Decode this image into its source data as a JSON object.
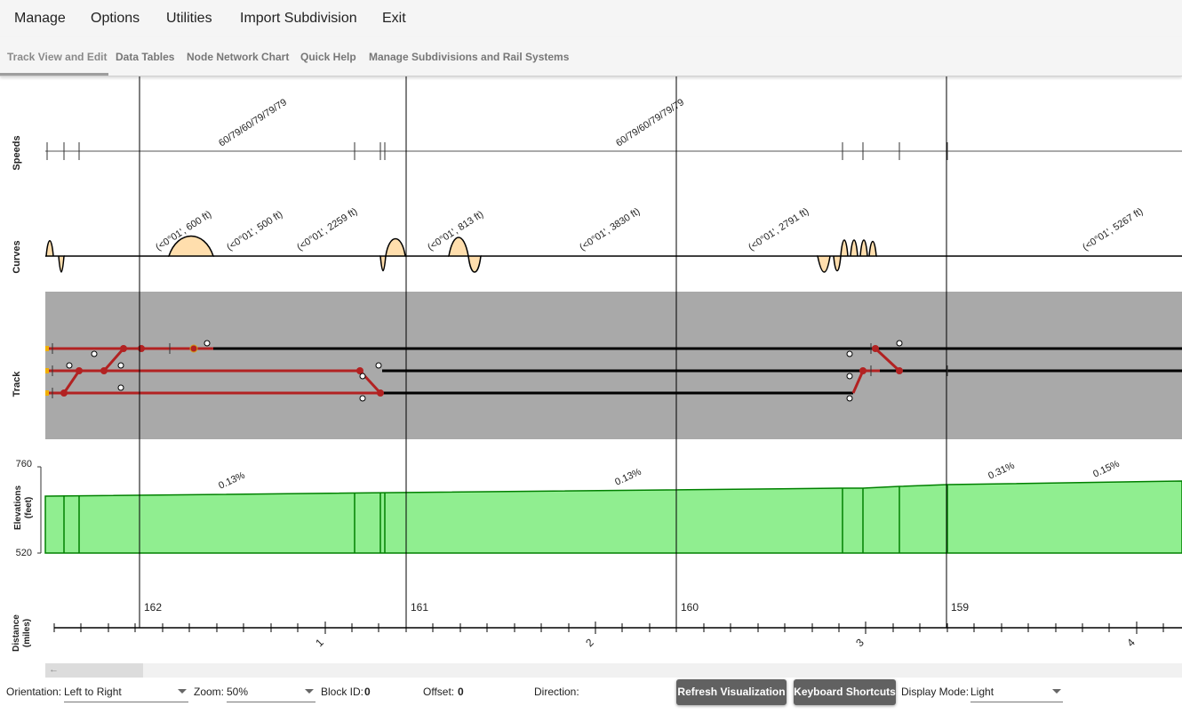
{
  "menu": {
    "items": [
      "Manage",
      "Options",
      "Utilities",
      "Import Subdivision",
      "Exit"
    ]
  },
  "tabs": {
    "items": [
      "Track View and Edit",
      "Data Tables",
      "Node Network Chart",
      "Quick Help",
      "Manage Subdivisions and Rail Systems"
    ],
    "active": "Track View and Edit"
  },
  "viz": {
    "row_labels": {
      "speeds": "Speeds",
      "curves": "Curves",
      "track": "Track",
      "elev1": "Elevations",
      "elev2": "(feet)",
      "dist1": "Distance",
      "dist2": "(miles)"
    },
    "speed_labels": [
      "60/79/60/79/79/79",
      "60/79/60/79/79/79"
    ],
    "curve_labels": [
      "(<0°01', 600 ft)",
      "(<0°01', 500 ft)",
      "(<0°01', 2259 ft)",
      "(<0°01', 813 ft)",
      "(<0°01', 3830 ft)",
      "(<0°01', 2791 ft)",
      "(<0°01', 5267 ft)"
    ],
    "elevation_axis": {
      "max": "760",
      "min": "520"
    },
    "grade_labels": [
      "0.13%",
      "0.13%",
      "0.31%",
      "0.15%"
    ],
    "mileposts": [
      "162",
      "161",
      "160",
      "159"
    ],
    "distance_ticks": [
      "1",
      "2",
      "3",
      "4"
    ],
    "colors": {
      "track_bg": "#a9a9a9",
      "route": "#b22222",
      "track": "#000000",
      "elevation_fill": "#90ee90",
      "elevation_stroke": "#008000",
      "curve_fill": "#ffdead"
    }
  },
  "scroll": {
    "arrow": "←"
  },
  "bottom": {
    "orientation_label": "Orientation:",
    "orientation_value": "Left to Right",
    "zoom_label": "Zoom:",
    "zoom_value": "50%",
    "block_label": "Block ID:",
    "block_value": "0",
    "offset_label": "Offset:",
    "offset_value": "0",
    "direction_label": "Direction:",
    "refresh_button": "Refresh Visualization",
    "shortcuts_button": "Keyboard Shortcuts",
    "display_label": "Display Mode:",
    "display_value": "Light"
  }
}
